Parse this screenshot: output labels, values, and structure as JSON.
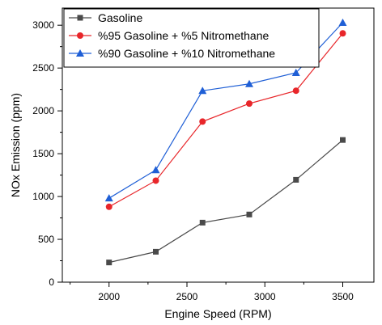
{
  "chart_data": {
    "type": "line",
    "title": "",
    "xlabel": "Engine Speed (RPM)",
    "ylabel": "NOx Emission (ppm)",
    "xlim": [
      1700,
      3700
    ],
    "ylim": [
      0,
      3200
    ],
    "x_ticks": [
      2000,
      2500,
      3000,
      3500
    ],
    "y_ticks": [
      0,
      500,
      1000,
      1500,
      2000,
      2500,
      3000
    ],
    "x_minor_step": 250,
    "y_minor_step": 250,
    "grid": false,
    "legend_position": "top-left",
    "x": [
      2000,
      2300,
      2600,
      2900,
      3200,
      3500
    ],
    "series": [
      {
        "name": "Gasoline",
        "color": "#4a4a4a",
        "marker": "square",
        "values": [
          230,
          355,
          695,
          790,
          1195,
          1660
        ]
      },
      {
        "name": "%95 Gasoline + %5 Nitromethane",
        "color": "#e8262a",
        "marker": "circle",
        "values": [
          880,
          1185,
          1875,
          2085,
          2235,
          2905
        ]
      },
      {
        "name": "%90 Gasoline + %10 Nitromethane",
        "color": "#1f5fd6",
        "marker": "triangle",
        "values": [
          980,
          1310,
          2235,
          2315,
          2445,
          3030
        ]
      }
    ]
  }
}
